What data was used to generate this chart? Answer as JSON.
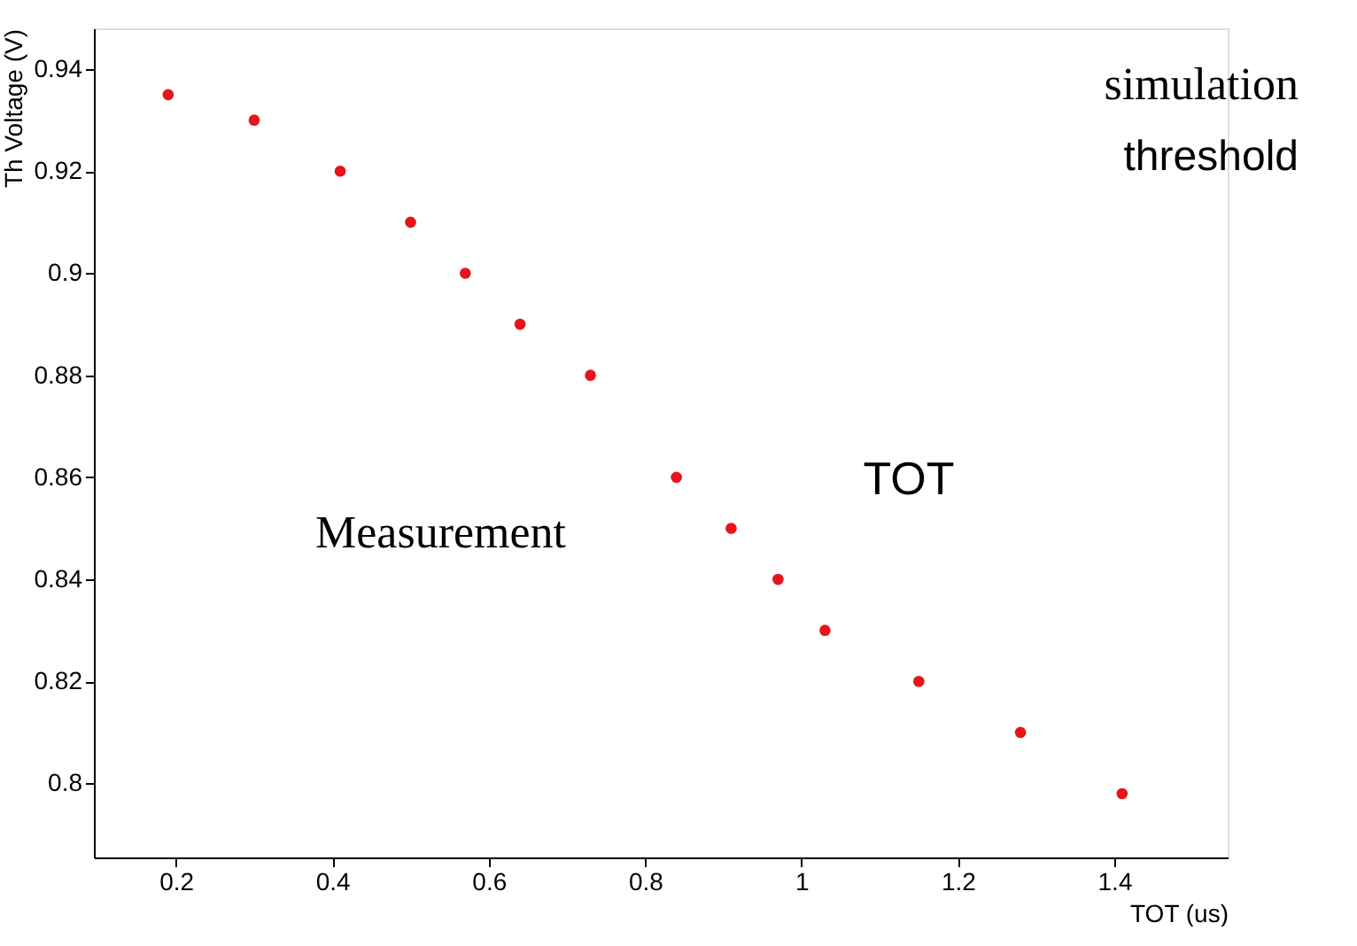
{
  "chart_data": {
    "type": "scatter",
    "xlabel": "TOT (us)",
    "ylabel": "Th Voltage (V)",
    "x": [
      0.19,
      0.3,
      0.41,
      0.5,
      0.57,
      0.64,
      0.73,
      0.84,
      0.91,
      0.97,
      1.03,
      1.15,
      1.28,
      1.41
    ],
    "series": [
      {
        "color": "#e8141c",
        "values": [
          0.935,
          0.93,
          0.92,
          0.91,
          0.9,
          0.89,
          0.88,
          0.86,
          0.85,
          0.84,
          0.83,
          0.82,
          0.81,
          0.798
        ]
      }
    ],
    "xlim": [
      0.095,
      1.545
    ],
    "ylim": [
      0.7855,
      0.948
    ],
    "xticks": [
      0.2,
      0.4,
      0.6,
      0.8,
      1,
      1.2,
      1.4
    ],
    "yticks": [
      0.8,
      0.82,
      0.84,
      0.86,
      0.88,
      0.9,
      0.92,
      0.94
    ],
    "grid": false,
    "marker": "circle",
    "annotations": [
      "Measurement",
      "simulation",
      "threshold",
      "TOT"
    ]
  }
}
